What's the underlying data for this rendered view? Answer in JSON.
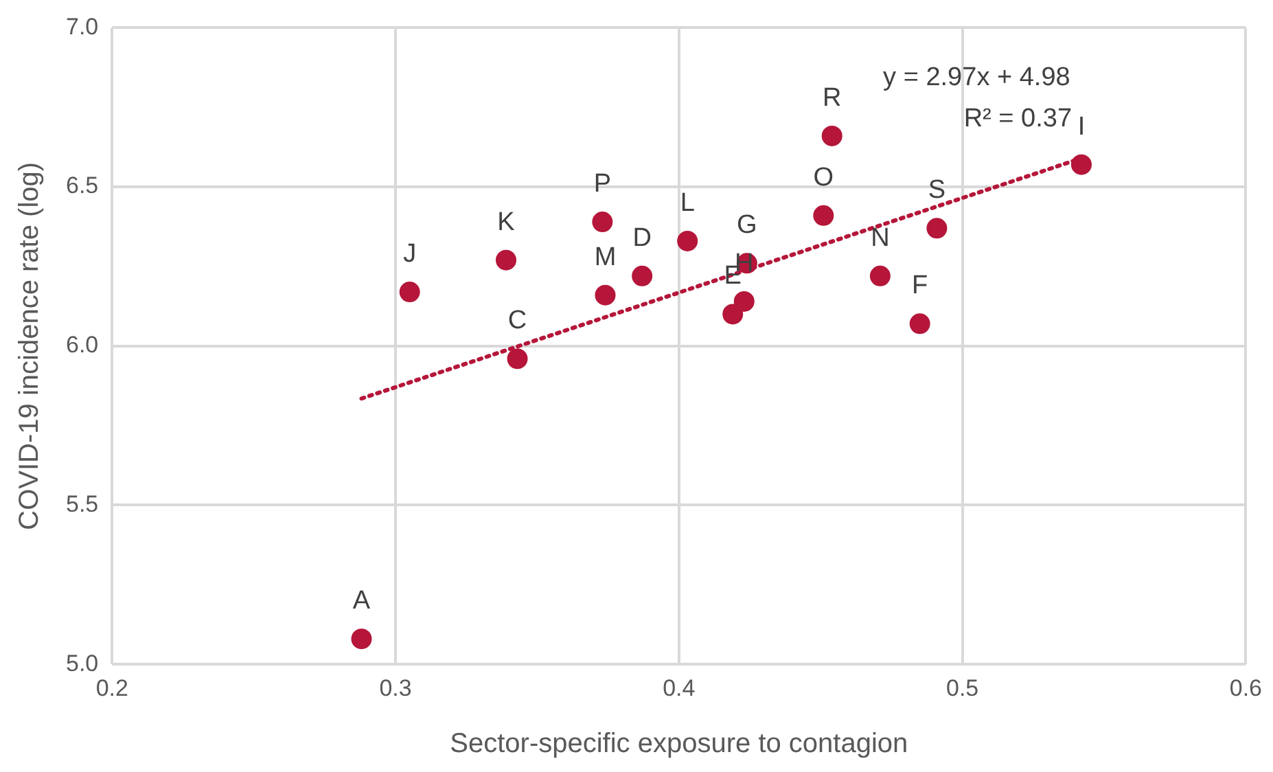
{
  "chart_data": {
    "type": "scatter",
    "xlabel": "Sector-specific exposure to contagion",
    "ylabel": "COVID-19 incidence rate (log)",
    "xlim": [
      0.2,
      0.6
    ],
    "xticks": [
      0.2,
      0.3,
      0.4,
      0.5,
      0.6
    ],
    "ylim": [
      5.0,
      7.0
    ],
    "yticks": [
      {
        "value": 5.0,
        "label": "5.0"
      },
      {
        "value": 5.5,
        "label": "5.5"
      },
      {
        "value": 6.0,
        "label": "6.0"
      },
      {
        "value": 6.5,
        "label": "6.5"
      },
      {
        "value": 7.0,
        "label": "7.0"
      }
    ],
    "grid": true,
    "legend": false,
    "marker": "circle",
    "series": [
      {
        "color": "#b5163a",
        "x": [
          0.288,
          0.305,
          0.339,
          0.343,
          0.373,
          0.374,
          0.387,
          0.403,
          0.419,
          0.423,
          0.424,
          0.451,
          0.454,
          0.471,
          0.485,
          0.491,
          0.542
        ],
        "values": [
          5.08,
          6.17,
          6.27,
          5.96,
          6.39,
          6.16,
          6.22,
          6.33,
          6.1,
          6.14,
          6.26,
          6.41,
          6.66,
          6.22,
          6.07,
          6.37,
          6.57
        ]
      },
      {
        "type": "line",
        "color": "#b5163a",
        "line_style": "dotted",
        "marker": "none",
        "x": [
          0.288,
          0.542
        ],
        "values": [
          5.835,
          6.59
        ]
      }
    ],
    "annotations": [
      {
        "text": "A",
        "x": 0.288,
        "y": 5.08
      },
      {
        "text": "J",
        "x": 0.305,
        "y": 6.17
      },
      {
        "text": "K",
        "x": 0.339,
        "y": 6.27
      },
      {
        "text": "C",
        "x": 0.343,
        "y": 5.96
      },
      {
        "text": "P",
        "x": 0.373,
        "y": 6.39
      },
      {
        "text": "M",
        "x": 0.374,
        "y": 6.16
      },
      {
        "text": "D",
        "x": 0.387,
        "y": 6.22
      },
      {
        "text": "L",
        "x": 0.403,
        "y": 6.33
      },
      {
        "text": "E",
        "x": 0.419,
        "y": 6.1
      },
      {
        "text": "H",
        "x": 0.423,
        "y": 6.14
      },
      {
        "text": "G",
        "x": 0.424,
        "y": 6.26
      },
      {
        "text": "O",
        "x": 0.451,
        "y": 6.41
      },
      {
        "text": "R",
        "x": 0.454,
        "y": 6.66
      },
      {
        "text": "N",
        "x": 0.471,
        "y": 6.22
      },
      {
        "text": "F",
        "x": 0.485,
        "y": 6.07
      },
      {
        "text": "S",
        "x": 0.491,
        "y": 6.37
      },
      {
        "text": "I",
        "x": 0.542,
        "y": 6.57
      },
      "y = 2.97x + 4.98",
      "R² = 0.37"
    ]
  }
}
